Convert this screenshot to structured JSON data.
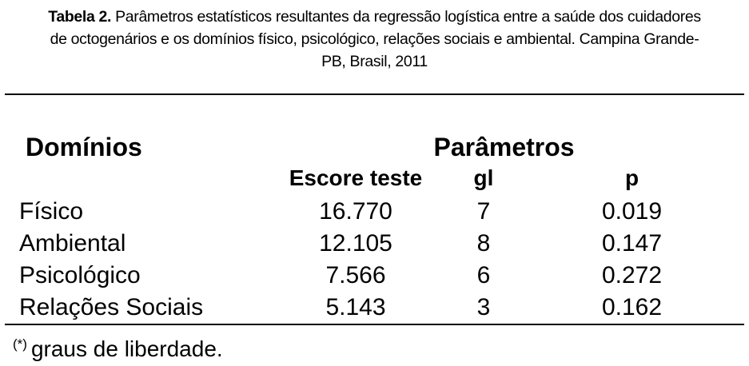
{
  "caption": {
    "label": "Tabela 2.",
    "line1_rest": " Parâmetros estatísticos resultantes da regressão logística entre a saúde dos cuidadores",
    "line2": "de octogenários e os domínios físico, psicológico, relações sociais e ambiental. Campina Grande-",
    "line3": "PB, Brasil, 2011"
  },
  "table": {
    "header": {
      "domains": "Domínios",
      "parameters": "Parâmetros",
      "escore": "Escore teste",
      "gl": "gl",
      "p": "p"
    },
    "rows": [
      {
        "domain": "Físico",
        "escore": "16.770",
        "gl": "7",
        "p": "0.019"
      },
      {
        "domain": "Ambiental",
        "escore": "12.105",
        "gl": "8",
        "p": "0.147"
      },
      {
        "domain": "Psicológico",
        "escore": "7.566",
        "gl": "6",
        "p": "0.272"
      },
      {
        "domain": "Relações Sociais",
        "escore": "5.143",
        "gl": "3",
        "p": "0.162"
      }
    ]
  },
  "footnote": {
    "marker": "(*)",
    "text": "graus de liberdade."
  },
  "colors": {
    "text": "#000000",
    "background": "#ffffff",
    "rule": "#000000"
  }
}
